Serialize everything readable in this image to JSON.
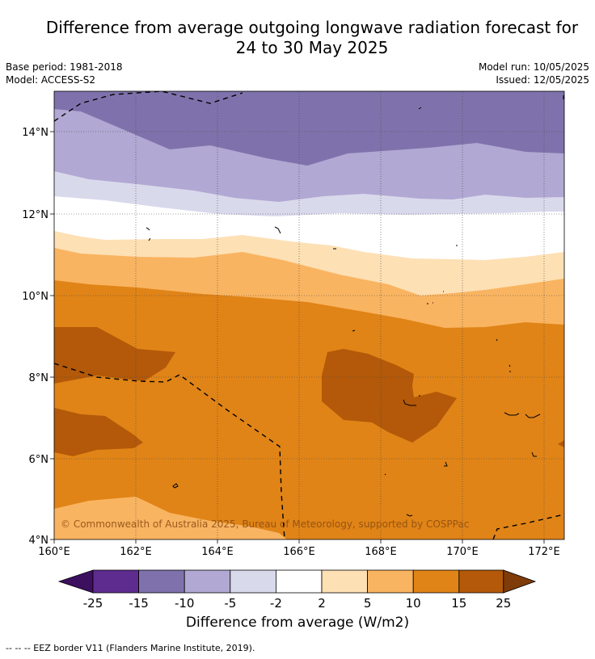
{
  "title_line1": "Difference from average outgoing longwave radiation forecast for",
  "title_line2": "24 to 30 May 2025",
  "base_period": "Base period: 1981-2018",
  "model": "Model: ACCESS-S2",
  "model_run": "Model run: 10/05/2025",
  "issued": "Issued: 12/05/2025",
  "copyright": "© Commonwealth of Australia 2025, Bureau of Meteorology, supported by COSPPac",
  "lat_labels": [
    "14°N",
    "12°N",
    "10°N",
    "8°N",
    "6°N",
    "4°N"
  ],
  "lon_labels": [
    "160°E",
    "162°E",
    "164°E",
    "166°E",
    "168°E",
    "170°E",
    "172°E"
  ],
  "colorbar": {
    "ticks": [
      "-25",
      "-15",
      "-10",
      "-5",
      "-2",
      "2",
      "5",
      "10",
      "15",
      "25"
    ],
    "label": "Difference from average (W/m2)",
    "colors": {
      "below_-25": "#3d0f5f",
      "-25_-15": "#5e2b8e",
      "-15_-10": "#7f72ac",
      "-10_-5": "#b1a8d3",
      "-5_-2": "#d9d9ec",
      "-2_2": "#ffffff",
      "2_5": "#fde0b4",
      "5_10": "#f9b461",
      "10_15": "#e08417",
      "15_25": "#b35909",
      "above_25": "#7f3b08"
    }
  },
  "legend_eez": "--  --  -- EEZ border V11 (Flanders Marine Institute, 2019)."
}
